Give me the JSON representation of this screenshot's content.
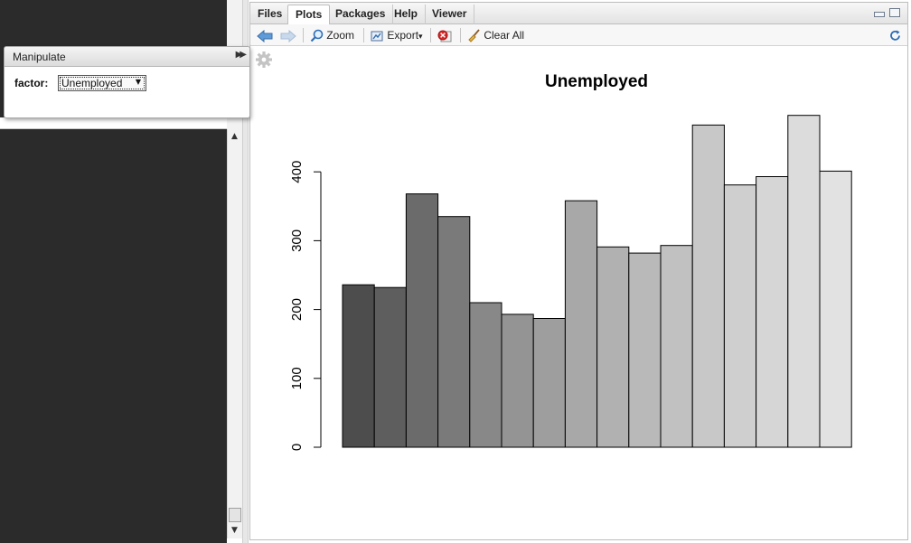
{
  "manipulate": {
    "title": "Manipulate",
    "factor_label": "factor:",
    "factor_value": "Unemployed"
  },
  "tabs": [
    "Files",
    "Plots",
    "Packages",
    "Help",
    "Viewer"
  ],
  "active_tab": "Plots",
  "toolbar": {
    "zoom_label": "Zoom",
    "export_label": "Export",
    "export_caret": "▾",
    "clear_all_label": "Clear All"
  },
  "icons": {
    "back": "back-arrow-icon",
    "forward": "forward-arrow-icon",
    "zoom": "zoom-icon",
    "export": "export-icon",
    "remove": "remove-plot-icon",
    "clear": "broom-icon",
    "refresh": "refresh-icon",
    "gear": "gear-icon"
  },
  "chart_data": {
    "type": "bar",
    "title": "Unemployed",
    "xlabel": "",
    "ylabel": "",
    "ylim": [
      0,
      500
    ],
    "yticks": [
      0,
      100,
      200,
      300,
      400
    ],
    "grid": false,
    "values": [
      236,
      232,
      368,
      335,
      210,
      193,
      187,
      358,
      291,
      282,
      293,
      468,
      381,
      393,
      482,
      401
    ],
    "colors": [
      "#4d4d4d",
      "#5e5e5e",
      "#6b6b6b",
      "#7a7a7a",
      "#888888",
      "#949494",
      "#9e9e9e",
      "#a8a8a8",
      "#b1b1b1",
      "#b9b9b9",
      "#c1c1c1",
      "#c8c8c8",
      "#cfcfcf",
      "#d6d6d6",
      "#dcdcdc",
      "#e2e2e2"
    ]
  }
}
